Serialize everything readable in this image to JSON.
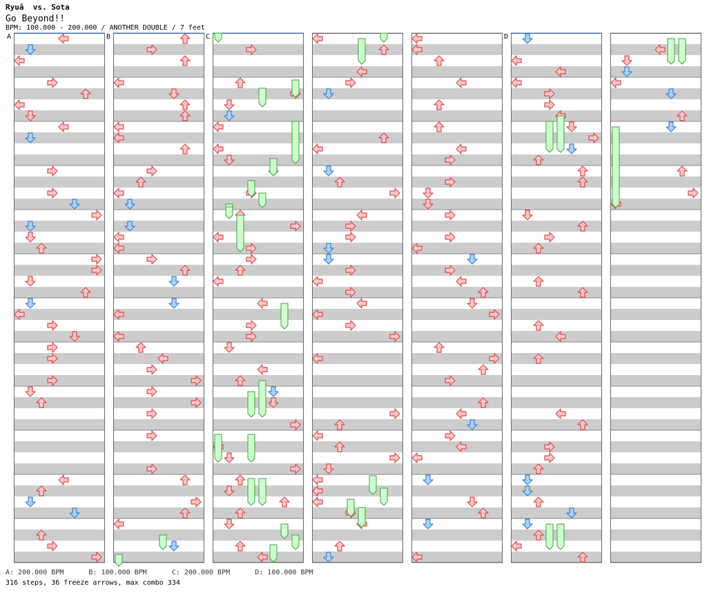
{
  "header": {
    "title": "Ryuâ  vs. Sota",
    "subtitle": "Go Beyond!!",
    "bpm_info": "BPM: 100.000 - 200.000 / ANOTHER DOUBLE / 7 feet"
  },
  "footer": {
    "bpm_legend": "A: 200.000 BPM      B: 100.000 BPM      C: 200.000 BPM      D: 100.000 BPM",
    "stats": "316 steps, 36 freeze arrows, max combo 334"
  },
  "colors": {
    "stripe": "#cccccc",
    "lane_border": "#666666",
    "arrow_red_fill": "#ffc8c8",
    "arrow_red_stroke": "#e04848",
    "arrow_blue_fill": "#a8d4ff",
    "arrow_blue_stroke": "#3c82d2",
    "freeze_fill": "#ccffcc",
    "freeze_stroke": "#40a040",
    "marker_line": "#3070d0"
  },
  "chart_data": {
    "type": "step-chart",
    "title": "Go Beyond!!",
    "difficulty": "ANOTHER DOUBLE",
    "feet": 7,
    "panels": 7,
    "bars_per_panel": 12,
    "bpm_markers": [
      {
        "label": "A",
        "bpm": 200.0,
        "panel": 0,
        "beat": 0
      },
      {
        "label": "B",
        "bpm": 100.0,
        "panel": 1,
        "beat": 16
      },
      {
        "label": "C",
        "bpm": 200.0,
        "panel": 2,
        "beat": 46
      },
      {
        "label": "D",
        "bpm": 100.0,
        "panel": 5,
        "beat": 176
      }
    ],
    "steps": 316,
    "freeze_arrows": 36,
    "max_combo": 334
  }
}
